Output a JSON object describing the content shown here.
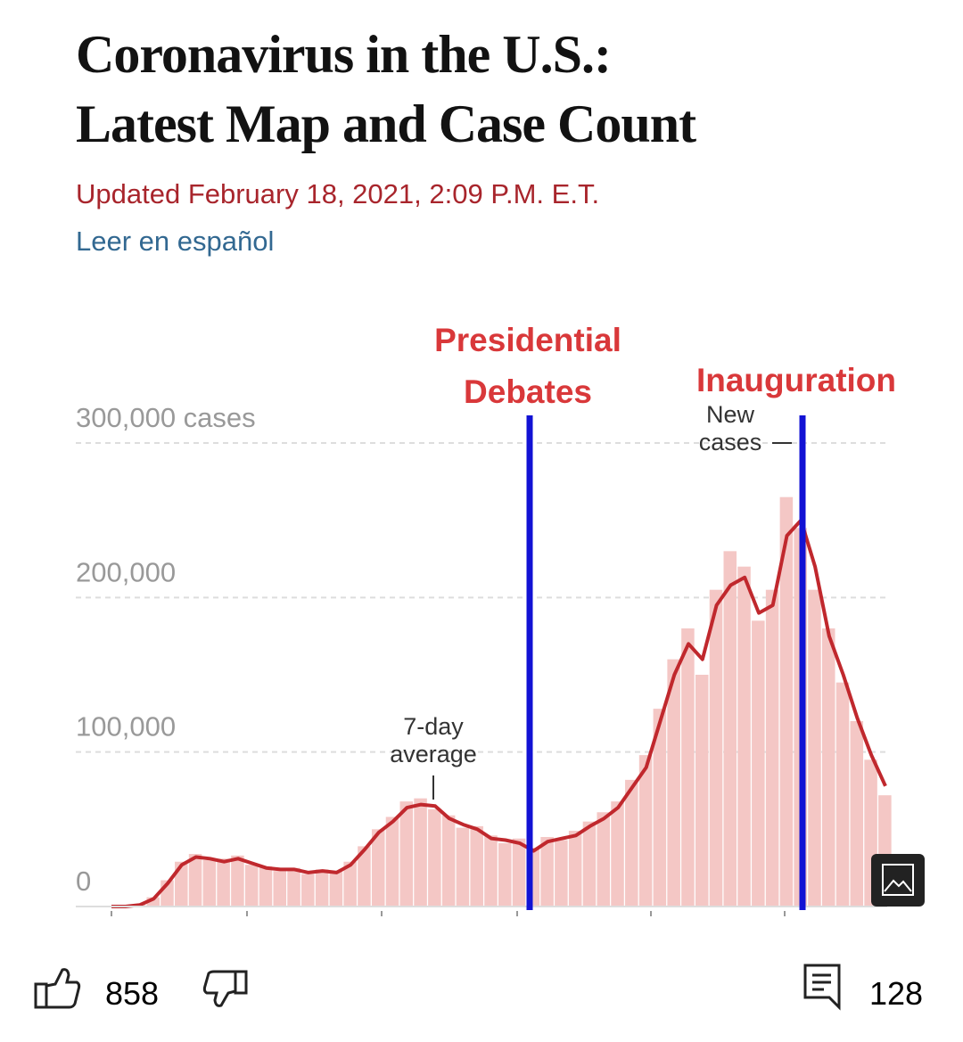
{
  "header": {
    "title": [
      "Coronavirus in the U.S.:",
      "Latest Map and Case Count"
    ],
    "updated": "Updated February 18, 2021, 2:09 P.M. E.T.",
    "link": "Leer en español"
  },
  "chart_data": {
    "type": "combo",
    "categories": [
      null,
      null,
      null,
      null,
      null,
      null,
      null,
      null,
      null,
      null,
      null,
      null,
      null,
      null,
      null,
      null,
      null,
      null,
      null,
      null,
      null,
      null,
      null,
      null,
      null,
      null,
      null,
      null,
      null,
      null,
      null,
      null,
      null,
      null,
      null,
      null,
      null,
      null,
      null,
      null,
      null,
      null,
      null,
      null,
      null,
      null,
      null,
      null,
      null,
      null,
      null,
      null,
      null,
      null,
      null,
      null
    ],
    "series": [
      {
        "name": "New cases",
        "type": "bar",
        "color": "#f4c7c5",
        "values": [
          0,
          0,
          1500,
          6000,
          17000,
          29000,
          34000,
          30000,
          31000,
          33000,
          27000,
          26000,
          23000,
          25000,
          21000,
          24000,
          23000,
          29000,
          39000,
          50000,
          58000,
          68000,
          70000,
          63000,
          59000,
          51000,
          52000,
          46000,
          41000,
          44000,
          38000,
          45000,
          43000,
          49000,
          55000,
          61000,
          68000,
          82000,
          98000,
          128000,
          160000,
          180000,
          150000,
          205000,
          230000,
          220000,
          185000,
          205000,
          265000,
          245000,
          205000,
          180000,
          145000,
          120000,
          95000,
          72000
        ]
      },
      {
        "name": "7-day average",
        "type": "line",
        "color": "#c0282d",
        "values": [
          0,
          0,
          1000,
          5000,
          15000,
          27000,
          32000,
          31000,
          29000,
          31000,
          28000,
          25000,
          24000,
          24000,
          22000,
          23000,
          22000,
          27000,
          37000,
          48000,
          55000,
          64000,
          66000,
          65000,
          57000,
          53000,
          50000,
          44000,
          43000,
          41000,
          36000,
          42000,
          44000,
          46000,
          52000,
          57000,
          64000,
          77000,
          90000,
          120000,
          150000,
          170000,
          160000,
          195000,
          208000,
          213000,
          190000,
          195000,
          240000,
          250000,
          220000,
          175000,
          150000,
          122000,
          98000,
          78000
        ]
      }
    ],
    "ylim": [
      0,
      300000
    ],
    "yticks": [
      0,
      {
        "value": 100000,
        "label": "100,000"
      },
      {
        "value": 200000,
        "label": "200,000"
      },
      {
        "value": 300000,
        "label": "300,000 cases"
      }
    ],
    "grid": true,
    "annotations": [
      "Presidential Debates",
      "Inauguration"
    ]
  },
  "footer": {
    "likes": 858,
    "comments": 128
  }
}
